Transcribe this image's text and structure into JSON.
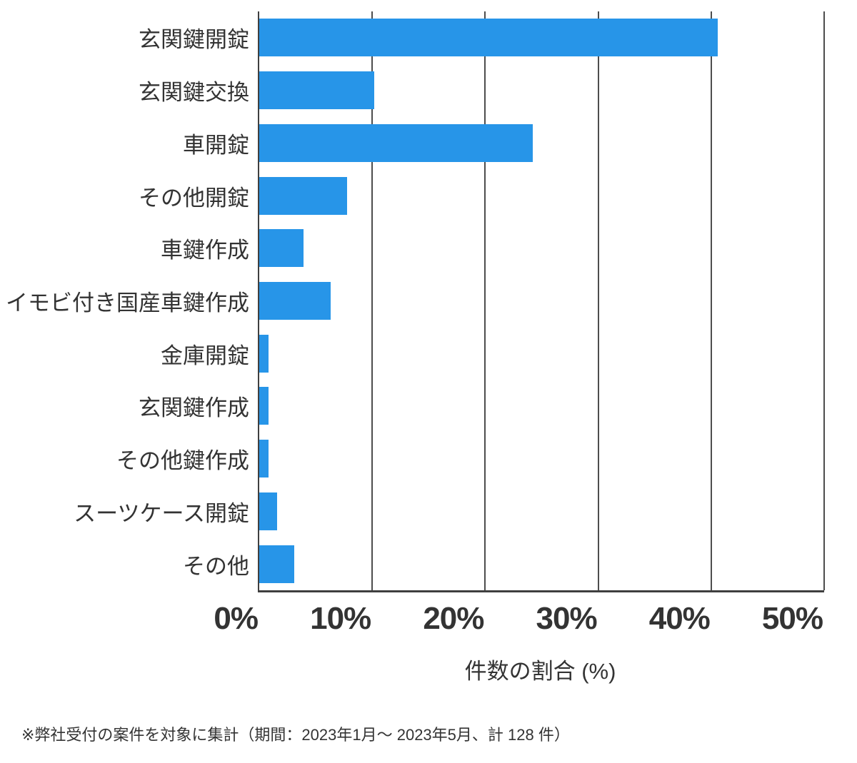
{
  "chart_data": {
    "type": "bar",
    "orientation": "horizontal",
    "categories": [
      "玄関鍵開錠",
      "玄関鍵交換",
      "車開錠",
      "その他開錠",
      "車鍵作成",
      "イモビ付き国産車鍵作成",
      "金庫開錠",
      "玄関鍵作成",
      "その他鍵作成",
      "スーツケース開錠",
      "その他"
    ],
    "values": [
      40.6,
      10.2,
      24.2,
      7.8,
      3.9,
      6.3,
      0.8,
      0.8,
      0.8,
      1.6,
      3.1
    ],
    "xlabel": "件数の割合 (%)",
    "xlim": [
      0,
      50
    ],
    "x_ticks": [
      0,
      10,
      20,
      30,
      40,
      50
    ],
    "x_tick_labels": [
      "0%",
      "10%",
      "20%",
      "30%",
      "40%",
      "50%"
    ],
    "grid": "vertical-only",
    "legend": "none",
    "footnote": "※弊社受付の案件を対象に集計（期間：2023年1月～ 2023年5月、計 128 件）"
  },
  "colors": {
    "bar": "#2795E8",
    "text": "#333333",
    "axis": "#3f3f3f",
    "gridline": "#4d4d4d",
    "background": "#ffffff"
  }
}
